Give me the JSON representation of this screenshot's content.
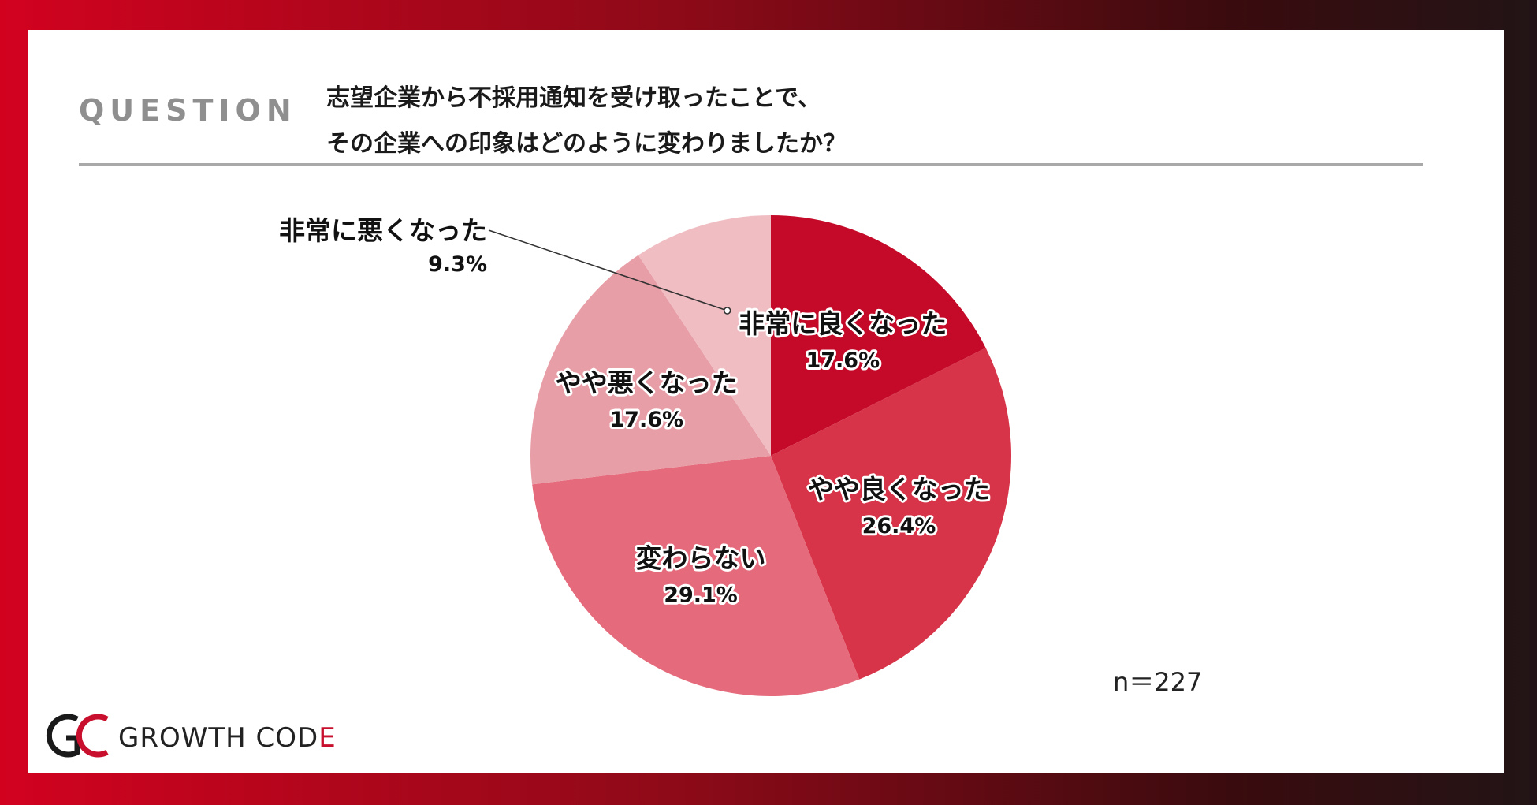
{
  "header": {
    "question_label": "QUESTION",
    "question_line1": "志望企業から不採用通知を受け取ったことで、",
    "question_line2": "その企業への印象はどのように変わりましたか？"
  },
  "chart_data": {
    "type": "pie",
    "title": "",
    "categories": [
      "非常に良くなった",
      "やや良くなった",
      "変わらない",
      "やや悪くなった",
      "非常に悪くなった"
    ],
    "values": [
      17.6,
      26.4,
      29.1,
      17.6,
      9.3
    ],
    "value_labels": [
      "17.6%",
      "26.4%",
      "29.1%",
      "17.6%",
      "9.3%"
    ],
    "colors": [
      "#c40a28",
      "#d83449",
      "#e56a7b",
      "#e89ea7",
      "#f0bdc3"
    ],
    "start": "12 o'clock",
    "direction": "clockwise"
  },
  "sample": {
    "n_label": "n＝227"
  },
  "logo": {
    "text_main": "GROWTH COD",
    "text_accent": "E"
  }
}
